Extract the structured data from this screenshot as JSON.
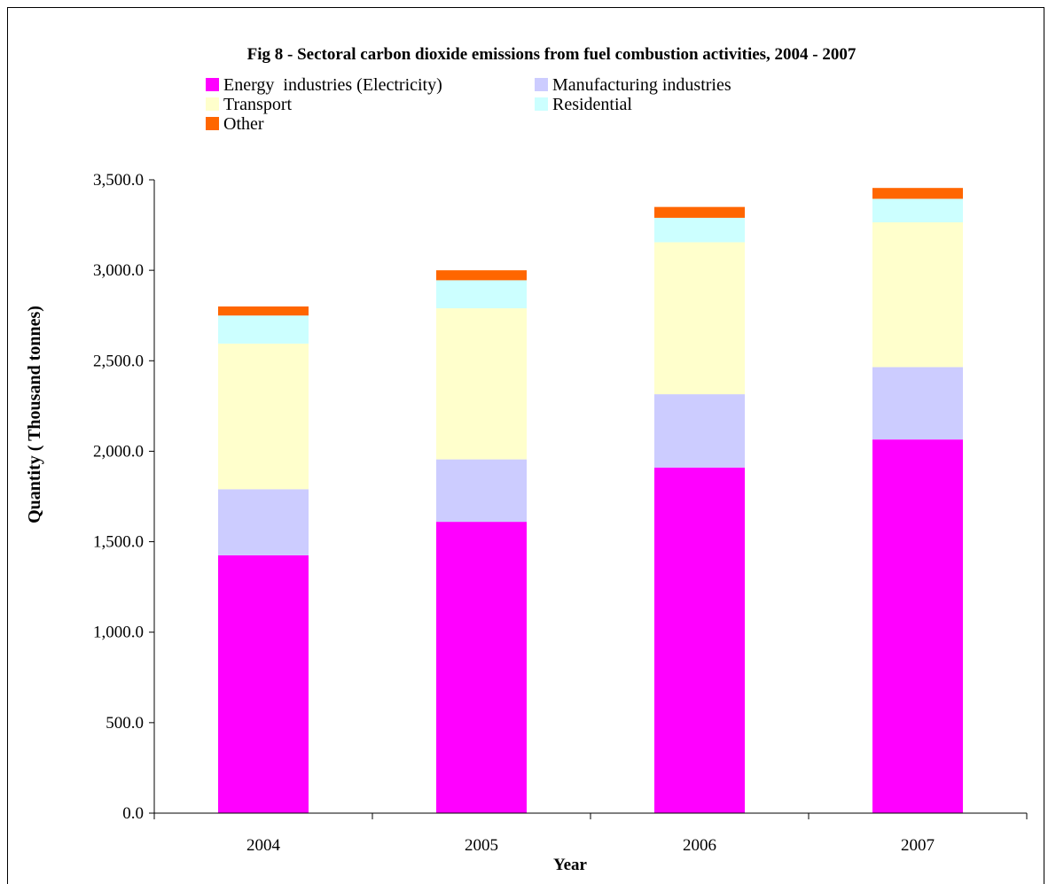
{
  "chart_data": {
    "type": "bar",
    "stacked": true,
    "title": "Fig 8 - Sectoral carbon dioxide emissions from fuel combustion activities, 2004 - 2007",
    "xlabel": "Year",
    "ylabel": "Quantity ( Thousand tonnes)",
    "categories": [
      "2004",
      "2005",
      "2006",
      "2007"
    ],
    "ylim": [
      0,
      3500
    ],
    "yticks": [
      0,
      500,
      1000,
      1500,
      2000,
      2500,
      3000,
      3500
    ],
    "ytick_labels": [
      "0.0",
      "500.0",
      "1,000.0",
      "1,500.0",
      "2,000.0",
      "2,500.0",
      "3,000.0",
      "3,500.0"
    ],
    "grid": false,
    "legend_position": "top",
    "series": [
      {
        "name": "Energy  industries (Electricity)",
        "color": "#FF00FF",
        "values": [
          1425,
          1610,
          1910,
          2065
        ]
      },
      {
        "name": "Manufacturing industries",
        "color": "#CCCCFF",
        "values": [
          365,
          345,
          405,
          400
        ]
      },
      {
        "name": "Transport",
        "color": "#FFFFCC",
        "values": [
          805,
          835,
          840,
          800
        ]
      },
      {
        "name": "Residential",
        "color": "#CCFFFF",
        "values": [
          155,
          155,
          135,
          130
        ]
      },
      {
        "name": "Other",
        "color": "#FF6600",
        "values": [
          50,
          55,
          60,
          60
        ]
      }
    ]
  }
}
